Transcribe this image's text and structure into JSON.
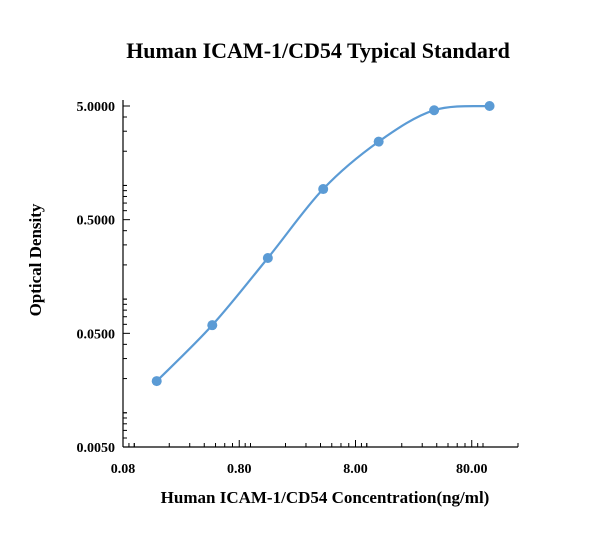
{
  "chart_data": {
    "type": "scatter",
    "title": "Human ICAM-1/CD54 Typical Standard",
    "xlabel": "Human ICAM-1/CD54 Concentration(ng/ml)",
    "ylabel": "Optical Density",
    "x_scale": "log",
    "y_scale": "log",
    "xlim": [
      0.08,
      200
    ],
    "ylim": [
      0.005,
      5
    ],
    "x_ticks": [
      {
        "value": 0.08,
        "label": "0.08"
      },
      {
        "value": 0.8,
        "label": "0.80"
      },
      {
        "value": 8,
        "label": "8.00"
      },
      {
        "value": 80,
        "label": "80.00"
      }
    ],
    "y_ticks": [
      {
        "value": 0.005,
        "label": "0.0050"
      },
      {
        "value": 0.05,
        "label": "0.0500"
      },
      {
        "value": 0.5,
        "label": "0.5000"
      },
      {
        "value": 5,
        "label": "5.0000"
      }
    ],
    "grid": false,
    "legend": "none",
    "series": [
      {
        "color": "#5b9bd5",
        "smooth_line": true,
        "x": [
          0.156,
          0.469,
          1.41,
          4.22,
          12.66,
          37.98,
          113.9
        ],
        "y": [
          0.019,
          0.059,
          0.23,
          0.93,
          2.43,
          4.59,
          5.0
        ]
      }
    ]
  }
}
